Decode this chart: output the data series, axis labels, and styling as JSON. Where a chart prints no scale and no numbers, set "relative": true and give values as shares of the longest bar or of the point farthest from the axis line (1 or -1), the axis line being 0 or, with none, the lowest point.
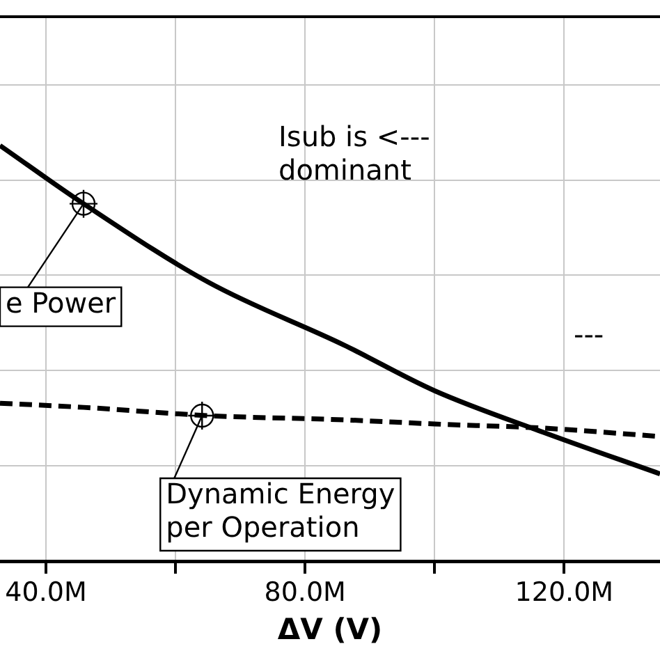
{
  "chart_data": {
    "type": "line",
    "xlabel": "ΔV (V)",
    "relative": true,
    "grid": true,
    "legend": false,
    "marker": "none",
    "xlim": [
      32.9,
      134.8
    ],
    "xticks": [
      {
        "value": 40,
        "label": "40.0M"
      },
      {
        "value": 60,
        "label": null
      },
      {
        "value": 80,
        "label": "80.0M"
      },
      {
        "value": 100,
        "label": null
      },
      {
        "value": 120,
        "label": "120.0M"
      }
    ],
    "x": [
      32.9,
      45.8,
      65.2,
      86.0,
      100,
      116.8,
      134.8
    ],
    "series": [
      {
        "color": "#000000",
        "line_style": "solid",
        "values": [
          1,
          0.86,
          0.67,
          0.52,
          0.41,
          0.31,
          0.21
        ]
      },
      {
        "color": "#000000",
        "line_style": "dashed",
        "values": [
          0.38,
          0.37,
          0.35,
          0.34,
          0.33,
          0.32,
          0.3
        ]
      }
    ],
    "annotations": [
      {
        "text": "e Power",
        "x": 45.8,
        "y": 0.86
      },
      {
        "text": "Dynamic Energy\nper Operation",
        "x": 64.1,
        "y": 0.35
      },
      "Isub is <---\ndominant",
      "---"
    ]
  }
}
